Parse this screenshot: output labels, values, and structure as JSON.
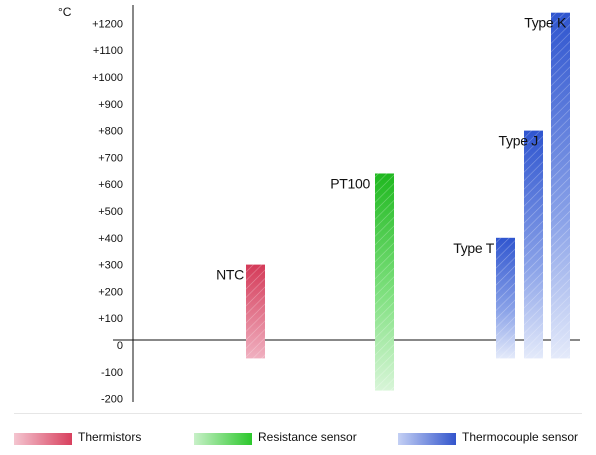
{
  "chart_data": {
    "type": "bar",
    "y_unit": "°C",
    "ylim": [
      -200,
      1250
    ],
    "y_ticks": [
      -200,
      -100,
      0,
      100,
      200,
      300,
      400,
      500,
      600,
      700,
      800,
      900,
      1000,
      1100,
      1200
    ],
    "y_tick_labels": [
      "-200",
      "-100",
      "0",
      "+100",
      "+200",
      "+300",
      "+400",
      "+500",
      "+600",
      "+700",
      "+800",
      "+900",
      "+1000",
      "+1100",
      "+1200"
    ],
    "bars": [
      {
        "label": "NTC",
        "min": -50,
        "max": 300,
        "group": "Thermistors"
      },
      {
        "label": "PT100",
        "min": -170,
        "max": 640,
        "group": "Resistance sensor"
      },
      {
        "label": "Type T",
        "min": -50,
        "max": 400,
        "group": "Thermocouple sensor"
      },
      {
        "label": "Type J",
        "min": -50,
        "max": 800,
        "group": "Thermocouple sensor"
      },
      {
        "label": "Type K",
        "min": -50,
        "max": 1240,
        "group": "Thermocouple sensor"
      }
    ],
    "legend": [
      {
        "label": "Thermistors",
        "color": "#d8405e"
      },
      {
        "label": "Resistance sensor",
        "color": "#2cc82c"
      },
      {
        "label": "Thermocouple sensor",
        "color": "#3355cc"
      }
    ],
    "grid": false,
    "legend_position": "bottom"
  }
}
